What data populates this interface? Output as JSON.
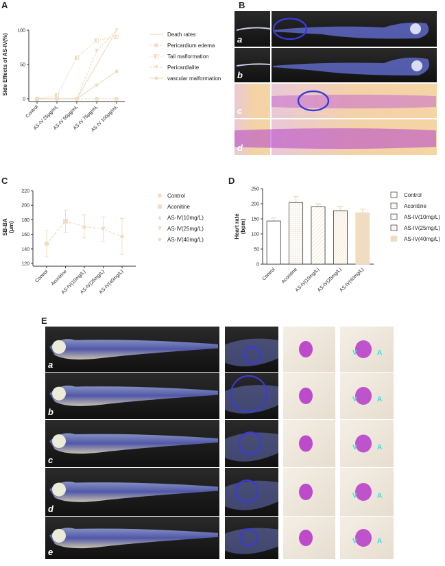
{
  "panels": {
    "A": "A",
    "B": "B",
    "C": "C",
    "D": "D",
    "E": "E"
  },
  "panel_b_sublabels": [
    "a",
    "b",
    "c",
    "d"
  ],
  "panel_e_sublabels": [
    "a",
    "b",
    "c",
    "d",
    "e"
  ],
  "panel_e_chamber_labels": {
    "ventricle": "V",
    "atrium": "A"
  },
  "colors": {
    "series": "#f0dcc0",
    "axis": "#333333",
    "circle": "#3a3adb",
    "dark_bg": "#1c1c1c",
    "pink_bg": "#f3d2a8",
    "heart": "#b638c8",
    "va_label": "#2ee0e0"
  },
  "chart_data": [
    {
      "type": "line",
      "panel": "A",
      "ylabel": "Side Effects of AS-IV(%)",
      "xlabel": "",
      "categories": [
        "Control",
        "AS-IV 25μg/mL",
        "AS-IV 50μg/mL",
        "AS-IV 75μg/mL",
        "AS-IV 100μg/mL"
      ],
      "ylim": [
        0,
        100
      ],
      "yticks": [
        0,
        50,
        100
      ],
      "legend_position": "right",
      "series": [
        {
          "name": "Death rates",
          "values": [
            0,
            0,
            0,
            50,
            100
          ],
          "marker": "none",
          "dash": "solid"
        },
        {
          "name": "Pericardium edema",
          "values": [
            0,
            0,
            0,
            0,
            0
          ],
          "marker": "square",
          "dash": "dashed"
        },
        {
          "name": "Tail malformation",
          "values": [
            0,
            5,
            60,
            85,
            90
          ],
          "marker": "half-square",
          "dash": "dotted"
        },
        {
          "name": "Pericardialite",
          "values": [
            0,
            0,
            0,
            70,
            100
          ],
          "marker": "triangle-down",
          "dash": "dashed"
        },
        {
          "name": "vascular malformation",
          "values": [
            0,
            0,
            0,
            20,
            40
          ],
          "marker": "circle",
          "dash": "solid"
        }
      ]
    },
    {
      "type": "line",
      "panel": "C",
      "ylabel": "SB-BA\n(μm)",
      "xlabel": "",
      "categories": [
        "Control",
        "Aconitine",
        "AS-IV(10mg/L)",
        "AS-IV(25mg/L)",
        "AS-IV(40mg/L)"
      ],
      "ylim": [
        120,
        220
      ],
      "yticks": [
        120,
        140,
        160,
        180,
        200,
        220
      ],
      "legend_position": "right",
      "values": [
        147,
        178,
        171,
        167,
        157
      ],
      "errors": [
        18,
        15,
        16,
        17,
        25
      ],
      "legend": [
        "Control",
        "Aconitine",
        "AS-IV(10mg/L)",
        "AS-IV(25mg/L)",
        "AS-IV(40mg/L)"
      ],
      "markers": [
        "circle",
        "square",
        "triangle-up",
        "triangle-down",
        "diamond"
      ]
    },
    {
      "type": "bar",
      "panel": "D",
      "ylabel": "Heart rate\n(bpm)",
      "xlabel": "",
      "categories": [
        "Control",
        "Aconitine",
        "AS-IV(10mg/L)",
        "AS-IV(25mg/L)",
        "AS-IV(40mg/L)"
      ],
      "ylim": [
        0,
        250
      ],
      "yticks": [
        0,
        50,
        100,
        150,
        200,
        250
      ],
      "legend_position": "right",
      "values": [
        143,
        204,
        190,
        177,
        170
      ],
      "errors": [
        10,
        20,
        10,
        14,
        12
      ],
      "legend": [
        "Control",
        "Aconitine",
        "AS-IV(10mg/L)",
        "AS-IV(25mg/L)",
        "AS-IV(40mg/L)"
      ],
      "fills": [
        "empty",
        "dots",
        "diag-sparse",
        "diag-dense",
        "solid"
      ]
    }
  ]
}
